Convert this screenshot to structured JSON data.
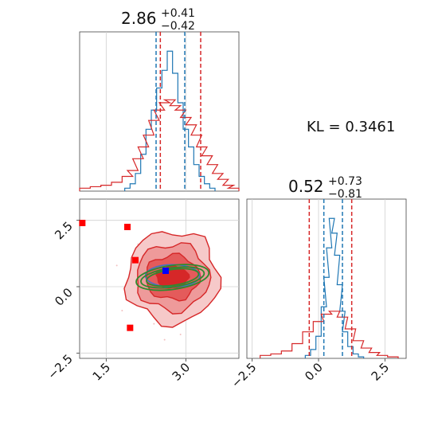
{
  "chart_data": [
    {
      "type": "histogram",
      "panel": "marginal-param-1",
      "title": {
        "median": "2.86",
        "upper": "+0.41",
        "lower": "−0.42"
      },
      "xlim": [
        1.0,
        4.0
      ],
      "series": [
        {
          "name": "",
          "color": "#1f77b4",
          "bins_x": [
            1.9,
            2.0,
            2.1,
            2.2,
            2.3,
            2.4,
            2.5,
            2.6,
            2.7,
            2.8,
            2.9,
            3.0,
            3.1,
            3.2,
            3.3,
            3.4,
            3.5
          ],
          "heights": [
            0.02,
            0.05,
            0.12,
            0.25,
            0.42,
            0.55,
            0.7,
            0.82,
            0.95,
            0.8,
            0.6,
            0.42,
            0.3,
            0.18,
            0.1,
            0.05,
            0.02
          ]
        },
        {
          "name": "",
          "color": "#d62728",
          "bins_x": [
            1.1,
            1.3,
            1.5,
            1.7,
            1.9,
            2.0,
            2.1,
            2.2,
            2.3,
            2.4,
            2.5,
            2.6,
            2.7,
            2.8,
            2.9,
            3.0,
            3.1,
            3.2,
            3.3,
            3.4,
            3.5,
            3.6,
            3.7,
            3.8,
            3.9
          ],
          "heights": [
            0.02,
            0.03,
            0.04,
            0.06,
            0.1,
            0.14,
            0.22,
            0.3,
            0.38,
            0.48,
            0.55,
            0.6,
            0.62,
            0.58,
            0.55,
            0.5,
            0.45,
            0.38,
            0.3,
            0.24,
            0.18,
            0.12,
            0.08,
            0.04,
            0.02
          ]
        }
      ],
      "quantile_lines": [
        {
          "color": "#1f77b4",
          "x": [
            2.44,
            2.98
          ]
        },
        {
          "color": "#d62728",
          "x": [
            2.52,
            3.28
          ]
        }
      ]
    },
    {
      "type": "histogram",
      "panel": "marginal-param-2",
      "title": {
        "median": "0.52",
        "upper": "+0.73",
        "lower": "−0.81"
      },
      "xlim": [
        -2.7,
        3.3
      ],
      "xticks": [
        "−2.5",
        "0.0",
        "2.5"
      ],
      "series": [
        {
          "name": "",
          "color": "#1f77b4",
          "bins_x": [
            -0.4,
            -0.2,
            0.0,
            0.2,
            0.3,
            0.4,
            0.5,
            0.6,
            0.7,
            0.8,
            0.9,
            1.0,
            1.2,
            1.4,
            1.6
          ],
          "heights": [
            0.02,
            0.06,
            0.15,
            0.35,
            0.55,
            0.75,
            0.95,
            0.85,
            0.7,
            0.5,
            0.32,
            0.18,
            0.08,
            0.03,
            0.01
          ]
        },
        {
          "name": "",
          "color": "#d62728",
          "bins_x": [
            -2.0,
            -1.6,
            -1.2,
            -0.8,
            -0.4,
            0.0,
            0.3,
            0.6,
            0.9,
            1.2,
            1.5,
            1.8,
            2.1,
            2.4,
            2.8
          ],
          "heights": [
            0.02,
            0.03,
            0.05,
            0.1,
            0.18,
            0.25,
            0.3,
            0.32,
            0.28,
            0.2,
            0.12,
            0.07,
            0.04,
            0.02,
            0.01
          ]
        }
      ],
      "quantile_lines": [
        {
          "color": "#1f77b4",
          "x": [
            0.2,
            0.9
          ]
        },
        {
          "color": "#d62728",
          "x": [
            -0.35,
            1.25
          ]
        }
      ]
    },
    {
      "type": "scatter",
      "panel": "joint",
      "xlim": [
        1.0,
        4.0
      ],
      "ylim": [
        -2.7,
        3.3
      ],
      "xticks": [
        "1.5",
        "3.0"
      ],
      "yticks": [
        "−2.5",
        "0.0",
        "2.5"
      ],
      "points": [
        {
          "x": 1.05,
          "y": 2.4,
          "color": "#ff0000"
        },
        {
          "x": 1.9,
          "y": 2.25,
          "color": "#ff0000"
        },
        {
          "x": 2.05,
          "y": 1.0,
          "color": "#ff0000"
        },
        {
          "x": 1.95,
          "y": -1.55,
          "color": "#ff0000"
        },
        {
          "x": 2.62,
          "y": 0.6,
          "color": "#0000ff"
        }
      ]
    },
    {
      "type": "annotation",
      "text": "KL = 0.3461"
    }
  ]
}
